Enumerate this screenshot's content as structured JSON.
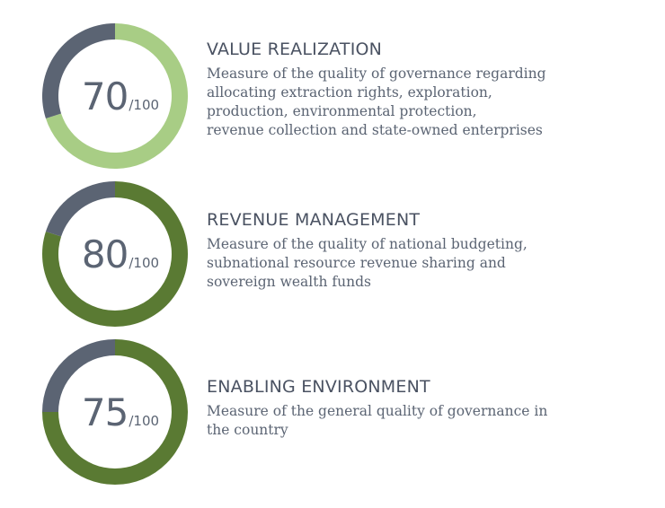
{
  "chart_data": [
    {
      "type": "pie",
      "value": 70,
      "max": 100,
      "max_label": "/100",
      "title": "VALUE REALIZATION",
      "description_lines": [
        "Measure of the quality of governance regarding",
        "allocating extraction rights, exploration,",
        "production, environmental protection,",
        "revenue collection and state-owned enterprises"
      ],
      "fill_color": "#a8cd85",
      "remainder_color": "#5b6473"
    },
    {
      "type": "pie",
      "value": 80,
      "max": 100,
      "max_label": "/100",
      "title": "REVENUE MANAGEMENT",
      "description_lines": [
        "Measure of the quality of national budgeting,",
        "subnational resource revenue sharing and",
        "sovereign wealth funds"
      ],
      "fill_color": "#5a7a33",
      "remainder_color": "#5b6473"
    },
    {
      "type": "pie",
      "value": 75,
      "max": 100,
      "max_label": "/100",
      "title": "ENABLING ENVIRONMENT",
      "description_lines": [
        "Measure of the general quality of governance in",
        "the country"
      ],
      "fill_color": "#5a7a33",
      "remainder_color": "#5b6473"
    }
  ]
}
